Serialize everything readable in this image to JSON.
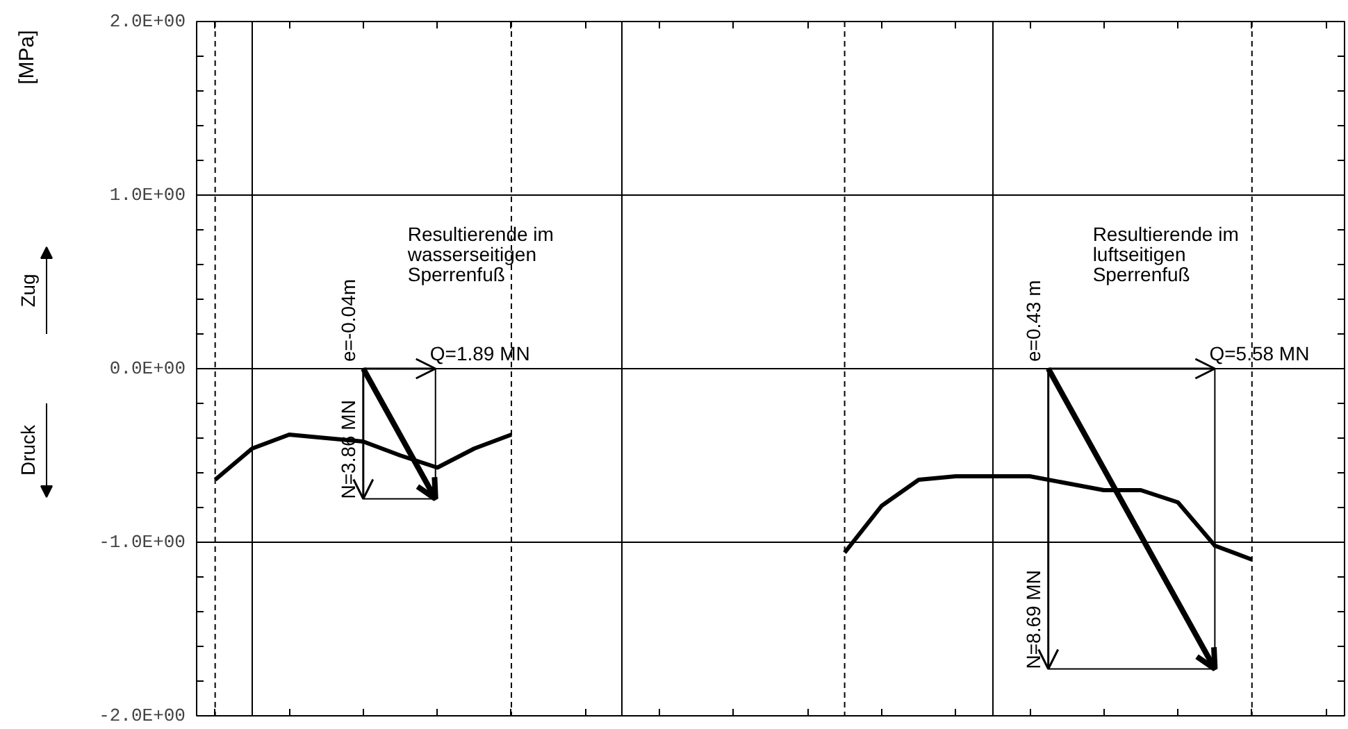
{
  "chart_data": {
    "type": "line",
    "ylabel": "[MPa]",
    "categories": [
      null,
      null,
      null,
      null,
      null,
      null,
      null,
      null,
      null,
      null,
      null,
      null,
      null,
      null,
      null,
      null,
      null,
      null,
      null,
      null,
      null,
      null,
      null,
      null,
      null,
      null,
      null,
      null,
      null,
      null,
      null
    ],
    "series": [
      {
        "color": "#000000",
        "values": [
          -0.64,
          -0.46,
          -0.38,
          -0.4,
          -0.42,
          -0.5,
          -0.57,
          -0.46,
          -0.38,
          null,
          null,
          null,
          null,
          null,
          null,
          null,
          null,
          null,
          null,
          null,
          null,
          null,
          null,
          null,
          null,
          null,
          null,
          null,
          null,
          null,
          null
        ]
      },
      {
        "color": "#000000",
        "values": [
          null,
          null,
          null,
          null,
          null,
          null,
          null,
          null,
          null,
          null,
          null,
          null,
          null,
          null,
          null,
          null,
          null,
          -1.06,
          -0.79,
          -0.64,
          -0.62,
          -0.62,
          -0.62,
          -0.66,
          -0.7,
          -0.7,
          -0.77,
          -1.02,
          -1.1,
          null,
          null
        ]
      }
    ],
    "ylim": [
      -2,
      2
    ],
    "yticks": [
      {
        "value": -2,
        "label": "-2.0E+00"
      },
      {
        "value": -1,
        "label": "-1.0E+00"
      },
      {
        "value": 0,
        "label": "0.0E+00"
      },
      {
        "value": 1,
        "label": "1.0E+00"
      },
      {
        "value": 2,
        "label": "2.0E+00"
      }
    ],
    "grid": true,
    "line_style": "solid",
    "marker": "none",
    "annotations": [
      "Zug",
      "Druck",
      "e=-0.04m",
      "Q=1.89 MN",
      "N=3.86 MN",
      "Resultierende im\nwasserseitigen\nSperrenfuß",
      "e=0.43 m",
      "Q=5.58 MN",
      "N=8.69 MN",
      "Resultierende im\nluftseitigen\nSperrenfuß"
    ]
  }
}
